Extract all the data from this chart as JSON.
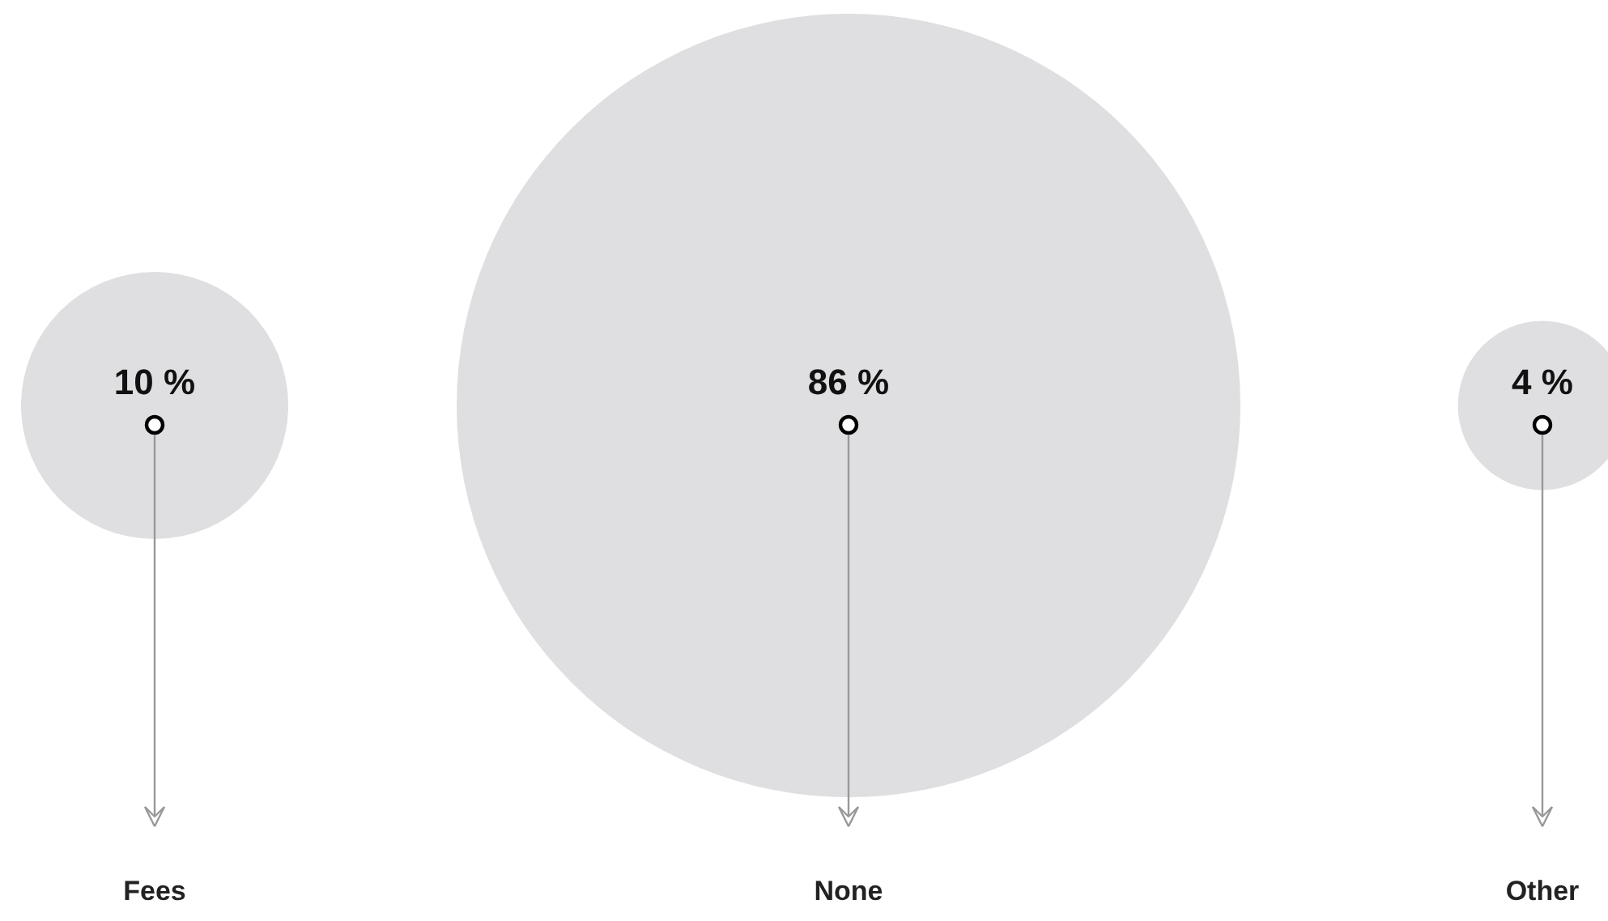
{
  "chart_data": {
    "type": "other",
    "categories": [
      "Fees",
      "None",
      "Other"
    ],
    "values": [
      10,
      86,
      4
    ],
    "value_labels": [
      "10 %",
      "86 %",
      "4 %"
    ],
    "color": "#dfdfe1"
  }
}
